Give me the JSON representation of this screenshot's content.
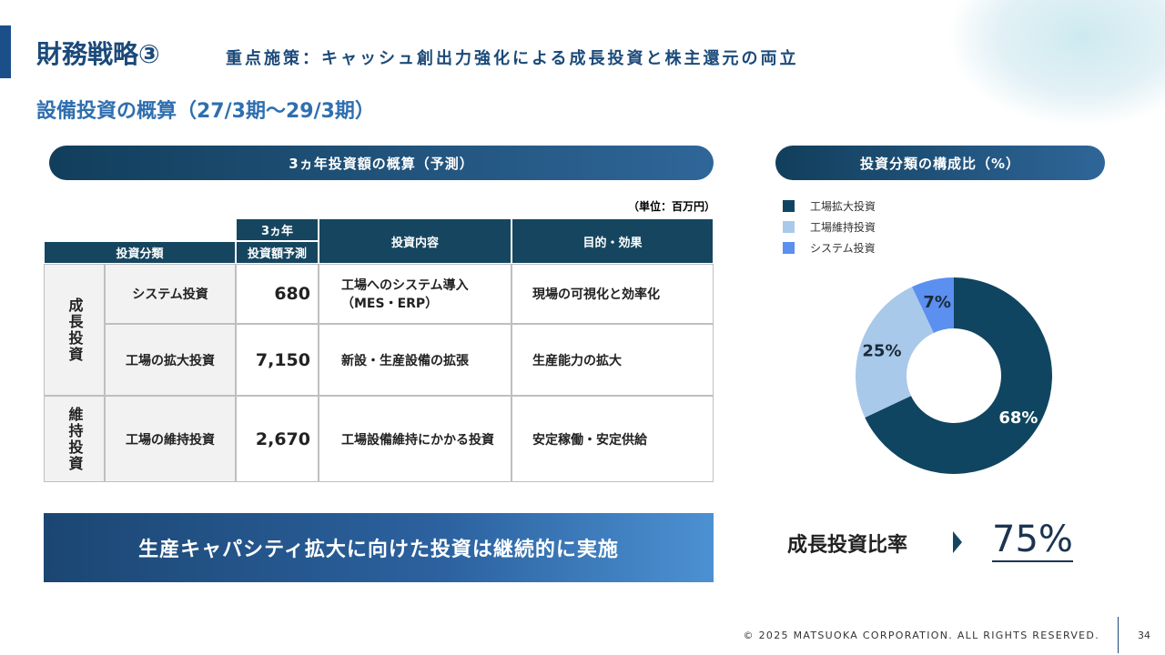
{
  "header": {
    "title": "財務戦略③",
    "subtitle": "重点施策：キャッシュ創出力強化による成長投資と株主還元の両立",
    "section": "設備投資の概算（27/3期～29/3期）"
  },
  "table": {
    "heading": "3ヵ年投資額の概算（予測）",
    "unit": "（単位：百万円）",
    "columns": [
      "投資分類",
      "3ヵ年",
      "投資額予測",
      "投資内容",
      "目的・効果"
    ],
    "groups": [
      {
        "name": "成長投資",
        "rows": [
          [
            "システム投資",
            "680",
            "工場へのシステム導入（MES・ERP）",
            "現場の可視化と効率化"
          ],
          [
            "工場の拡大投資",
            "7,150",
            "新設・生産設備の拡張",
            "生産能力の拡大"
          ]
        ]
      },
      {
        "name": "維持投資",
        "rows": [
          [
            "工場の維持投資",
            "2,670",
            "工場設備維持にかかる投資",
            "安定稼働・安定供給"
          ]
        ]
      }
    ]
  },
  "chart_data": {
    "type": "pie",
    "title": "投資分類の構成比（%）",
    "donut": true,
    "categories": [
      "工場拡大投資",
      "工場維持投資",
      "システム投資"
    ],
    "values": [
      68,
      25,
      7
    ],
    "value_labels": [
      "68%",
      "25%",
      "7%"
    ],
    "colors": [
      "#0f4560",
      "#a9c9ea",
      "#5b8ff0"
    ],
    "legend": "top-left"
  },
  "banner": "生産キャパシティ拡大に向けた投資は継続的に実施",
  "ratio": {
    "label": "成長投資比率",
    "value": "75%"
  },
  "footer": {
    "copyright": "© 2025 MATSUOKA CORPORATION. ALL RIGHTS RESERVED.",
    "page": "34"
  }
}
